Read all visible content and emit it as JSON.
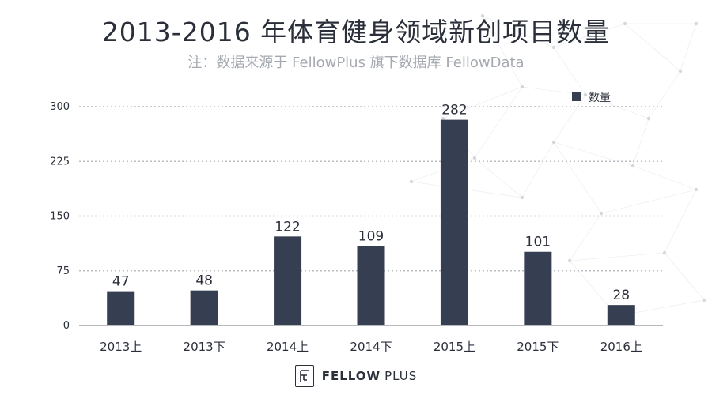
{
  "header": {
    "title": "2013-2016 年体育健身领域新创项目数量",
    "subtitle": "注：数据来源于 FellowPlus 旗下数据库 FellowData"
  },
  "footer": {
    "brand_bold": "FELLOW",
    "brand_light": "PLUS",
    "logo_icon": "fellowplus-logo-icon"
  },
  "colors": {
    "bar": "#363e51",
    "text": "#2b2f3a",
    "grid": "#b8bcc3",
    "subtitle": "#a5a9b0"
  },
  "chart_data": {
    "type": "bar",
    "categories": [
      "2013上",
      "2013下",
      "2014上",
      "2014下",
      "2015上",
      "2015下",
      "2016上"
    ],
    "series": [
      {
        "name": "数量",
        "values": [
          47,
          48,
          122,
          109,
          282,
          101,
          28
        ]
      }
    ],
    "yticks": [
      0,
      75,
      150,
      225,
      300
    ],
    "ylim": [
      0,
      300
    ],
    "grid": "dotted-horizontal",
    "legend_position": "top-right"
  }
}
